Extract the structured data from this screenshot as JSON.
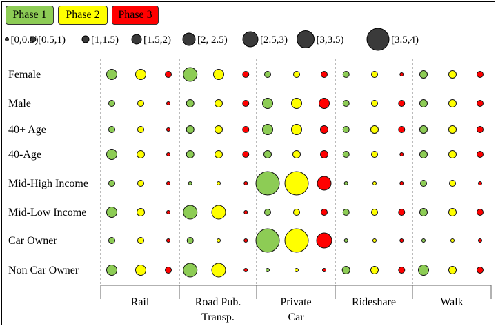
{
  "legend": {
    "phases": [
      {
        "label": "Phase 1",
        "color": "#8dcc55"
      },
      {
        "label": "Phase 2",
        "color": "#ffff00"
      },
      {
        "label": "Phase 3",
        "color": "#ff0000"
      }
    ],
    "size_bins": [
      "[0,0.5)",
      "[0.5,1)",
      "[1,1.5)",
      "[1.5,2)",
      "[2, 2.5)",
      "[2.5,3)",
      "[3,3.5)",
      "[3.5,4)"
    ],
    "bubble_fill": "#3a3a3a"
  },
  "chart_data": {
    "type": "bubble-matrix",
    "rows": [
      "Female",
      "Male",
      "40+ Age",
      "40-Age",
      "Mid-High Income",
      "Mid-Low Income",
      "Car Owner",
      "Non Car Owner"
    ],
    "columns": [
      {
        "label": "Rail",
        "label_lines": [
          "Rail"
        ]
      },
      {
        "label": "Road Pub. Transp.",
        "label_lines": [
          "Road Pub.",
          "Transp."
        ]
      },
      {
        "label": "Private Car",
        "label_lines": [
          "Private",
          "Car"
        ]
      },
      {
        "label": "Rideshare",
        "label_lines": [
          "Rideshare"
        ]
      },
      {
        "label": "Walk",
        "label_lines": [
          "Walk"
        ]
      }
    ],
    "series": [
      "Phase 1",
      "Phase 2",
      "Phase 3"
    ],
    "size_bins": [
      "[0,0.5)",
      "[0.5,1)",
      "[1,1.5)",
      "[1.5,2)",
      "[2, 2.5)",
      "[2.5,3)",
      "[3,3.5)",
      "[3.5,4)"
    ],
    "bin_index": [
      [
        [
          3,
          3,
          1
        ],
        [
          4,
          3,
          1
        ],
        [
          1,
          1,
          1
        ],
        [
          1,
          1,
          0
        ],
        [
          2,
          2,
          1
        ]
      ],
      [
        [
          1,
          1,
          0
        ],
        [
          2,
          2,
          1
        ],
        [
          3,
          3,
          3
        ],
        [
          1,
          1,
          1
        ],
        [
          2,
          2,
          1
        ]
      ],
      [
        [
          1,
          1,
          0
        ],
        [
          2,
          2,
          1
        ],
        [
          3,
          3,
          2
        ],
        [
          1,
          2,
          1
        ],
        [
          2,
          2,
          1
        ]
      ],
      [
        [
          3,
          2,
          0
        ],
        [
          2,
          2,
          1
        ],
        [
          2,
          2,
          2
        ],
        [
          1,
          1,
          0
        ],
        [
          2,
          2,
          1
        ]
      ],
      [
        [
          1,
          1,
          0
        ],
        [
          0,
          0,
          0
        ],
        [
          7,
          7,
          4
        ],
        [
          0,
          0,
          0
        ],
        [
          1,
          1,
          0
        ]
      ],
      [
        [
          3,
          2,
          0
        ],
        [
          4,
          4,
          0
        ],
        [
          1,
          1,
          1
        ],
        [
          1,
          1,
          1
        ],
        [
          2,
          2,
          1
        ]
      ],
      [
        [
          1,
          1,
          0
        ],
        [
          1,
          0,
          0
        ],
        [
          7,
          7,
          5
        ],
        [
          0,
          0,
          0
        ],
        [
          0,
          0,
          0
        ]
      ],
      [
        [
          3,
          3,
          1
        ],
        [
          4,
          4,
          0
        ],
        [
          0,
          0,
          0
        ],
        [
          2,
          2,
          1
        ],
        [
          3,
          2,
          1
        ]
      ]
    ]
  }
}
